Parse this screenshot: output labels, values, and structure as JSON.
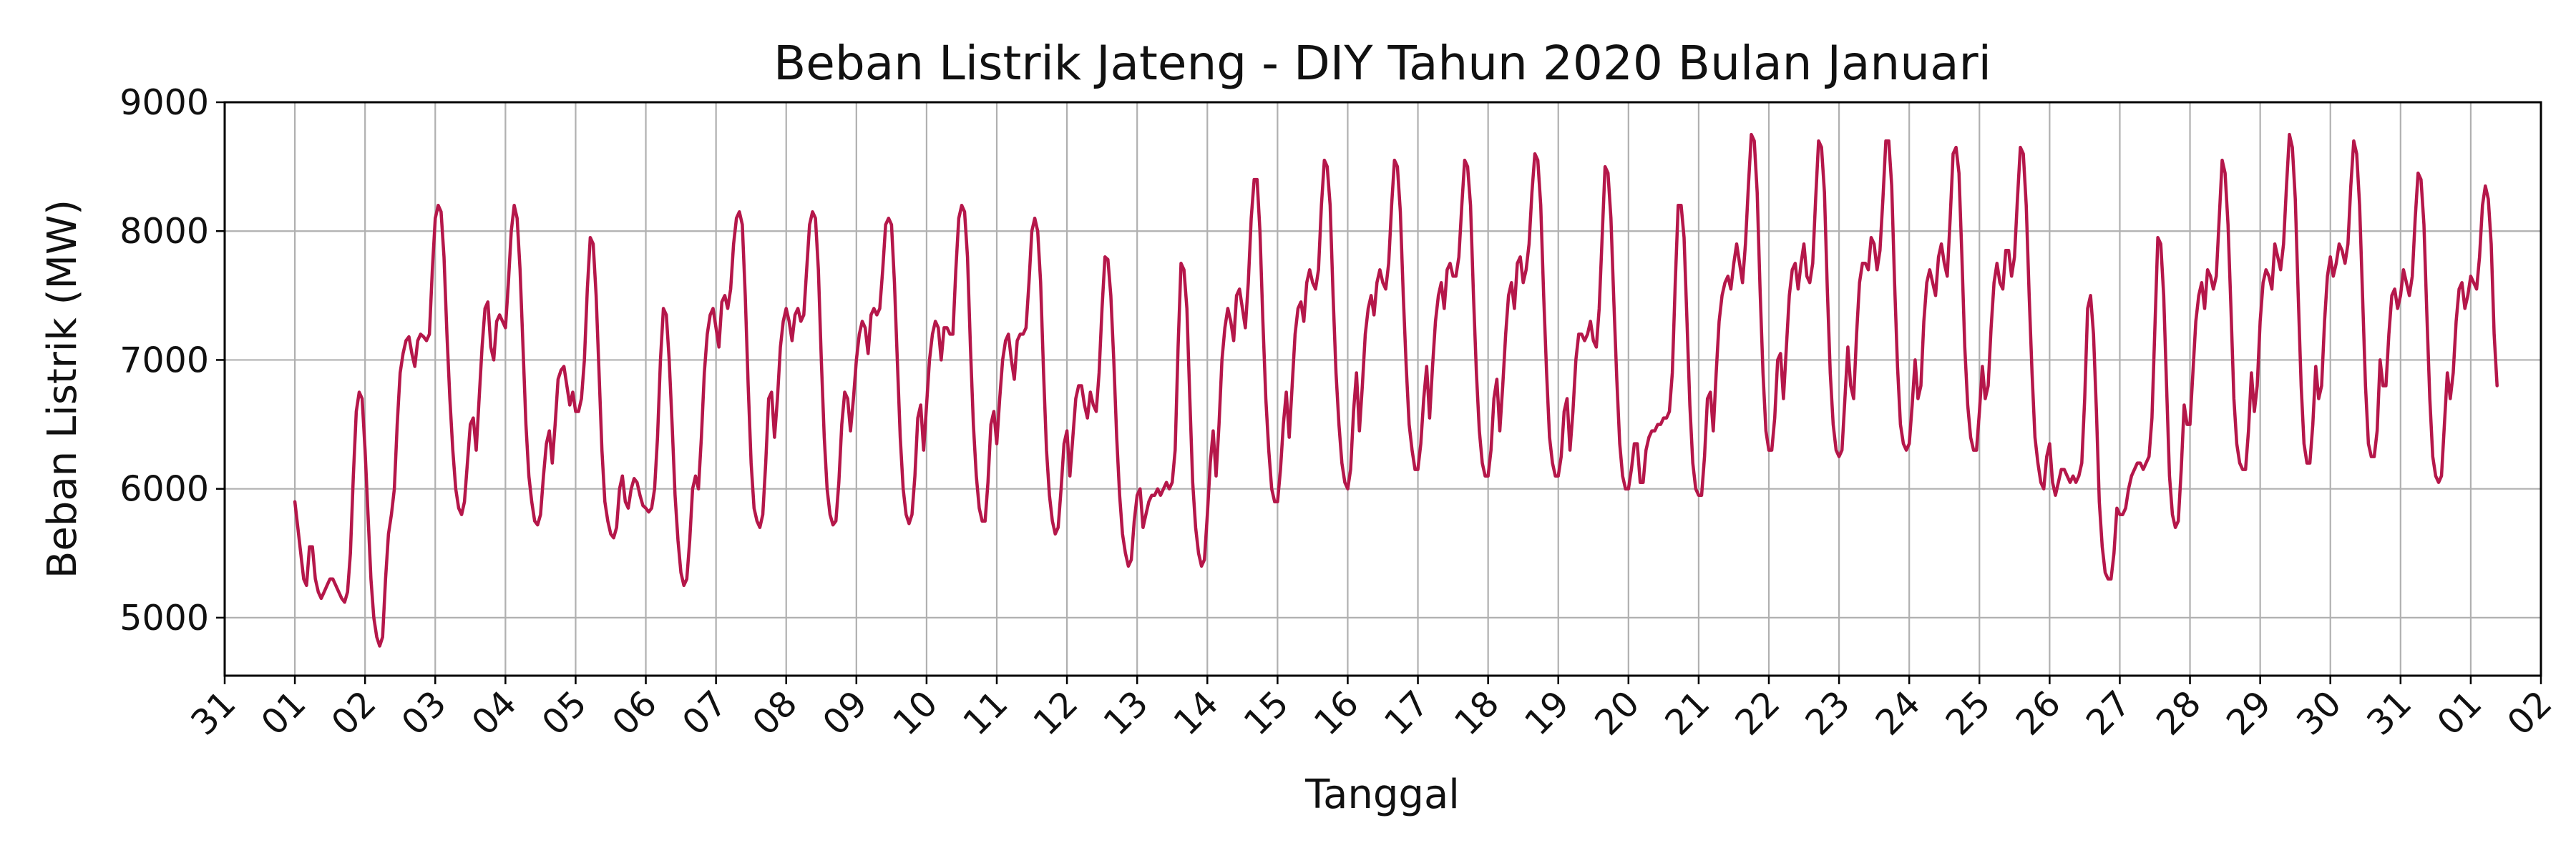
{
  "chart_data": {
    "type": "line",
    "title": "Beban Listrik Jateng - DIY Tahun 2020 Bulan Januari",
    "xlabel": "Tanggal",
    "ylabel": "Beban Listrik (MW)",
    "ylim": [
      4550,
      9000
    ],
    "xlim": [
      "2019-12-31T00:00",
      "2020-02-02T00:00"
    ],
    "y_ticks": [
      5000,
      6000,
      7000,
      8000,
      9000
    ],
    "x_tick_labels": [
      "31",
      "01",
      "02",
      "03",
      "04",
      "05",
      "06",
      "07",
      "08",
      "09",
      "10",
      "11",
      "12",
      "13",
      "14",
      "15",
      "16",
      "17",
      "18",
      "19",
      "20",
      "21",
      "22",
      "23",
      "24",
      "25",
      "26",
      "27",
      "28",
      "29",
      "30",
      "31",
      "01",
      "02"
    ],
    "grid": true,
    "legend": "none",
    "series_color": "#b5174a",
    "series": [
      {
        "start": "2020-01-01T00:00",
        "interval_hours": 1,
        "values": [
          5900,
          5700,
          5500,
          5300,
          5250,
          5550,
          5550,
          5300,
          5200,
          5150,
          5200,
          5250,
          5300,
          5300,
          5250,
          5200,
          5150,
          5120,
          5200,
          5500,
          6100,
          6600,
          6750,
          6700,
          6300,
          5800,
          5300,
          5000,
          4850,
          4780,
          4850,
          5300,
          5650,
          5800,
          6000,
          6500,
          6900,
          7050,
          7150,
          7180,
          7050,
          6950,
          7150,
          7200,
          7180,
          7150,
          7200,
          7700,
          8100,
          8200,
          8150,
          7800,
          7200,
          6700,
          6300,
          6000,
          5850,
          5800,
          5900,
          6200,
          6500,
          6550,
          6300,
          6700,
          7100,
          7400,
          7450,
          7100,
          7000,
          7300,
          7350,
          7300,
          7250,
          7600,
          8000,
          8200,
          8100,
          7700,
          7100,
          6500,
          6100,
          5900,
          5750,
          5720,
          5800,
          6100,
          6350,
          6450,
          6200,
          6500,
          6850,
          6920,
          6950,
          6800,
          6650,
          6750,
          6600,
          6600,
          6700,
          7000,
          7550,
          7950,
          7900,
          7500,
          6900,
          6300,
          5900,
          5750,
          5650,
          5620,
          5700,
          6000,
          6100,
          5900,
          5850,
          6000,
          6080,
          6050,
          5950,
          5870,
          5850,
          5820,
          5850,
          6000,
          6400,
          7000,
          7400,
          7350,
          7000,
          6500,
          5950,
          5600,
          5350,
          5250,
          5300,
          5600,
          6000,
          6100,
          6000,
          6400,
          6900,
          7200,
          7350,
          7400,
          7250,
          7100,
          7450,
          7500,
          7400,
          7550,
          7900,
          8100,
          8150,
          8050,
          7500,
          6800,
          6200,
          5850,
          5750,
          5700,
          5800,
          6200,
          6700,
          6750,
          6400,
          6700,
          7100,
          7300,
          7400,
          7300,
          7150,
          7350,
          7400,
          7300,
          7350,
          7700,
          8050,
          8150,
          8100,
          7700,
          7000,
          6400,
          6000,
          5800,
          5720,
          5750,
          6050,
          6500,
          6750,
          6700,
          6450,
          6700,
          7000,
          7200,
          7300,
          7250,
          7050,
          7350,
          7400,
          7350,
          7400,
          7700,
          8050,
          8100,
          8050,
          7600,
          7000,
          6400,
          6000,
          5800,
          5730,
          5800,
          6100,
          6550,
          6650,
          6300,
          6650,
          7000,
          7200,
          7300,
          7250,
          7000,
          7250,
          7250,
          7200,
          7200,
          7700,
          8100,
          8200,
          8150,
          7800,
          7100,
          6500,
          6100,
          5850,
          5750,
          5750,
          6050,
          6500,
          6600,
          6350,
          6700,
          7000,
          7150,
          7200,
          7000,
          6850,
          7150,
          7200,
          7200,
          7250,
          7600,
          8000,
          8100,
          8000,
          7600,
          6900,
          6300,
          5950,
          5750,
          5650,
          5700,
          6000,
          6350,
          6450,
          6100,
          6400,
          6700,
          6800,
          6800,
          6650,
          6550,
          6750,
          6650,
          6600,
          6900,
          7400,
          7800,
          7780,
          7500,
          7000,
          6400,
          5950,
          5650,
          5500,
          5400,
          5450,
          5750,
          5950,
          6000,
          5700,
          5800,
          5900,
          5950,
          5950,
          6000,
          5950,
          6000,
          6050,
          6000,
          6050,
          6300,
          7100,
          7750,
          7700,
          7400,
          6700,
          6050,
          5700,
          5500,
          5400,
          5450,
          5800,
          6200,
          6450,
          6100,
          6500,
          7000,
          7250,
          7400,
          7300,
          7150,
          7500,
          7550,
          7400,
          7250,
          7600,
          8100,
          8400,
          8400,
          8000,
          7300,
          6700,
          6300,
          6000,
          5900,
          5900,
          6150,
          6500,
          6750,
          6400,
          6800,
          7200,
          7400,
          7450,
          7300,
          7600,
          7700,
          7600,
          7550,
          7700,
          8200,
          8550,
          8500,
          8200,
          7500,
          6900,
          6500,
          6200,
          6050,
          6000,
          6150,
          6600,
          6900,
          6450,
          6800,
          7200,
          7400,
          7500,
          7350,
          7600,
          7700,
          7600,
          7550,
          7750,
          8200,
          8550,
          8500,
          8150,
          7500,
          6950,
          6500,
          6300,
          6150,
          6150,
          6350,
          6700,
          6950,
          6550,
          6950,
          7300,
          7500,
          7600,
          7400,
          7700,
          7750,
          7650,
          7650,
          7800,
          8200,
          8550,
          8500,
          8200,
          7500,
          6900,
          6450,
          6200,
          6100,
          6100,
          6300,
          6700,
          6850,
          6450,
          6800,
          7200,
          7500,
          7600,
          7400,
          7750,
          7800,
          7600,
          7700,
          7900,
          8300,
          8600,
          8550,
          8200,
          7500,
          6900,
          6400,
          6200,
          6100,
          6100,
          6250,
          6600,
          6700,
          6300,
          6600,
          7000,
          7200,
          7200,
          7150,
          7200,
          7300,
          7150,
          7100,
          7400,
          7950,
          8500,
          8450,
          8100,
          7450,
          6850,
          6350,
          6100,
          6000,
          6000,
          6150,
          6350,
          6350,
          6050,
          6050,
          6300,
          6400,
          6450,
          6450,
          6500,
          6500,
          6550,
          6550,
          6600,
          6900,
          7600,
          8200,
          8200,
          7950,
          7300,
          6650,
          6200,
          6000,
          5950,
          5950,
          6250,
          6700,
          6750,
          6450,
          6900,
          7300,
          7500,
          7600,
          7650,
          7550,
          7750,
          7900,
          7750,
          7600,
          7900,
          8350,
          8750,
          8700,
          8300,
          7550,
          6900,
          6450,
          6300,
          6300,
          6550,
          7000,
          7050,
          6700,
          7100,
          7500,
          7700,
          7750,
          7550,
          7750,
          7900,
          7650,
          7600,
          7750,
          8250,
          8700,
          8650,
          8300,
          7550,
          6900,
          6500,
          6300,
          6250,
          6300,
          6700,
          7100,
          6800,
          6700,
          7200,
          7600,
          7750,
          7750,
          7700,
          7950,
          7900,
          7700,
          7850,
          8250,
          8700,
          8700,
          8350,
          7600,
          6950,
          6500,
          6350,
          6300,
          6350,
          6650,
          7000,
          6700,
          6800,
          7300,
          7600,
          7700,
          7600,
          7500,
          7800,
          7900,
          7750,
          7650,
          8100,
          8600,
          8650,
          8450,
          7800,
          7100,
          6650,
          6400,
          6300,
          6300,
          6600,
          6950,
          6700,
          6800,
          7250,
          7600,
          7750,
          7600,
          7550,
          7850,
          7850,
          7650,
          7800,
          8250,
          8650,
          8600,
          8200,
          7500,
          6900,
          6400,
          6200,
          6050,
          6000,
          6250,
          6350,
          6050,
          5950,
          6050,
          6150,
          6150,
          6100,
          6050,
          6100,
          6050,
          6100,
          6200,
          6700,
          7400,
          7500,
          7200,
          6600,
          5900,
          5550,
          5350,
          5300,
          5300,
          5500,
          5850,
          5800,
          5800,
          5850,
          6000,
          6100,
          6150,
          6200,
          6200,
          6150,
          6200,
          6250,
          6550,
          7250,
          7950,
          7900,
          7500,
          6800,
          6100,
          5800,
          5700,
          5750,
          6150,
          6650,
          6500,
          6500,
          6900,
          7300,
          7500,
          7600,
          7400,
          7700,
          7650,
          7550,
          7650,
          8100,
          8550,
          8450,
          8050,
          7400,
          6700,
          6350,
          6200,
          6150,
          6150,
          6450,
          6900,
          6600,
          6800,
          7300,
          7600,
          7700,
          7650,
          7550,
          7900,
          7800,
          7700,
          7900,
          8350,
          8750,
          8650,
          8250,
          7500,
          6800,
          6350,
          6200,
          6200,
          6500,
          6950,
          6700,
          6800,
          7300,
          7650,
          7800,
          7650,
          7750,
          7900,
          7850,
          7750,
          7900,
          8350,
          8700,
          8600,
          8200,
          7500,
          6800,
          6350,
          6250,
          6250,
          6450,
          7000,
          6800,
          6800,
          7200,
          7500,
          7550,
          7400,
          7500,
          7700,
          7600,
          7500,
          7650,
          8100,
          8450,
          8400,
          8050,
          7350,
          6700,
          6250,
          6100,
          6050,
          6100,
          6500,
          6900,
          6700,
          6900,
          7300,
          7550,
          7600,
          7400,
          7500,
          7650,
          7600,
          7550,
          7800,
          8200,
          8350,
          8250,
          7900,
          7200,
          6800
        ]
      }
    ]
  }
}
